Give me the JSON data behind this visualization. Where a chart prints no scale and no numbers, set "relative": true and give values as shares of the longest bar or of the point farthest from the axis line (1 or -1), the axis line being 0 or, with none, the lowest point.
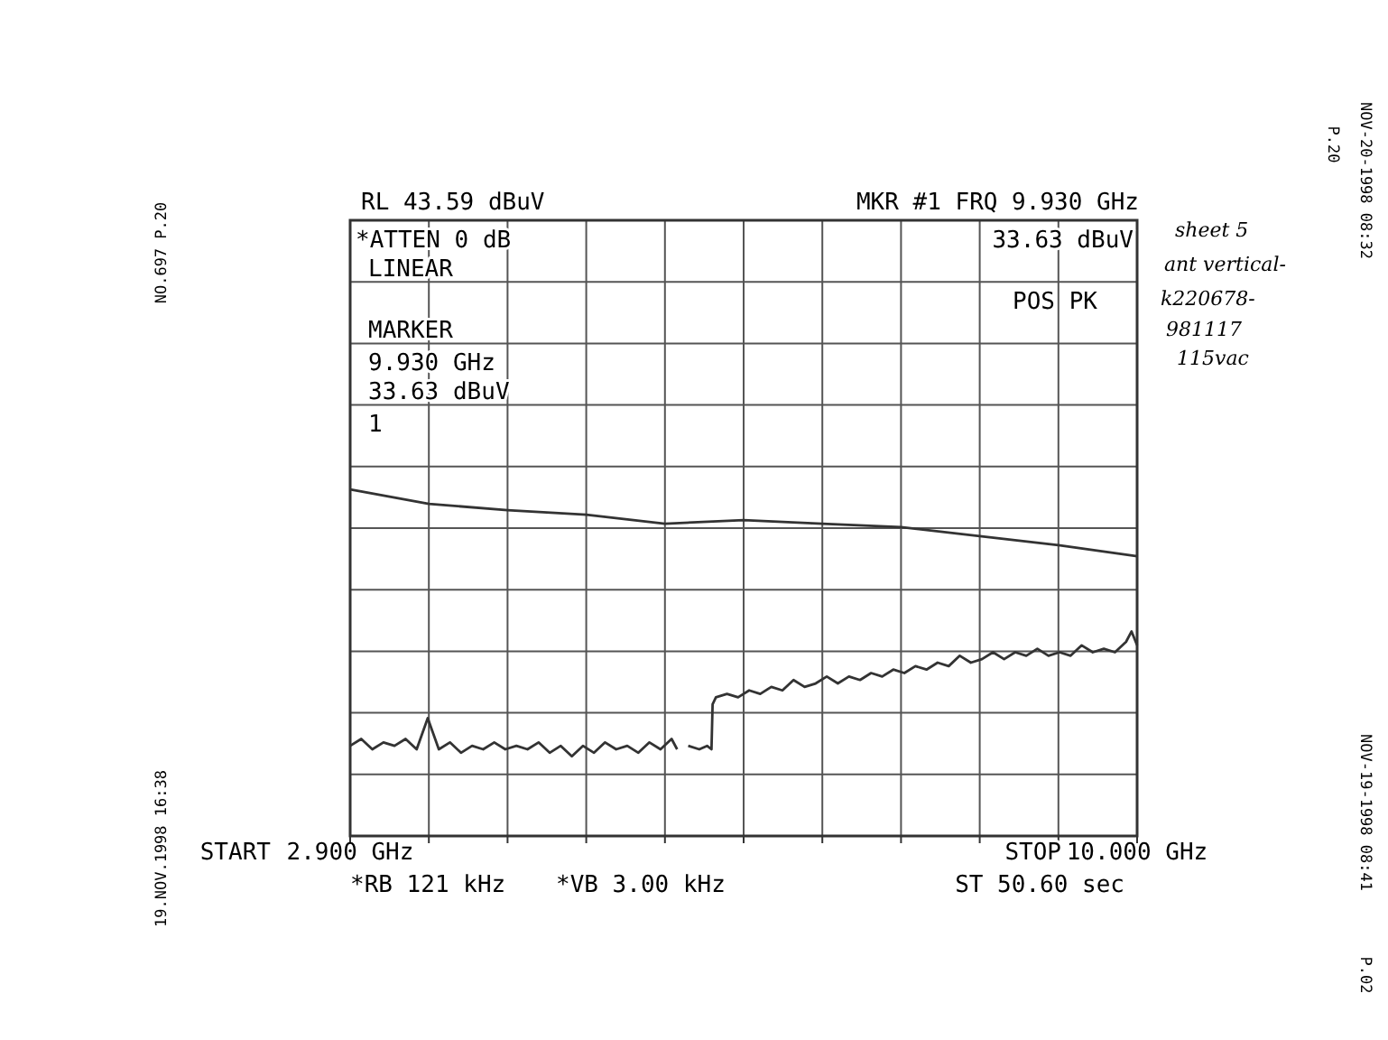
{
  "chart_data": {
    "type": "line",
    "title": "RL 43.59 dBuV",
    "relative": true,
    "xlim": [
      2.9,
      10
    ],
    "xticks": [
      {
        "value": 2.9,
        "label": "2.900 GHz"
      },
      {
        "value": 3.61,
        "label": null
      },
      {
        "value": 4.32,
        "label": null
      },
      {
        "value": 5.03,
        "label": null
      },
      {
        "value": 5.74,
        "label": null
      },
      {
        "value": 6.45,
        "label": null
      },
      {
        "value": 7.16,
        "label": null
      },
      {
        "value": 7.87,
        "label": null
      },
      {
        "value": 8.58,
        "label": null
      },
      {
        "value": 9.29,
        "label": null
      },
      {
        "value": 10,
        "label": "10.000 GHz"
      }
    ],
    "grid": true,
    "tick_labels": "x",
    "series": [
      {
        "color": "#333333",
        "x": [
          2.9,
          3.61,
          4.32,
          5.03,
          5.74,
          6.45,
          7.16,
          7.87,
          8.58,
          9.29,
          10
        ],
        "values": [
          1.0,
          0.958,
          0.94,
          0.927,
          0.901,
          0.911,
          0.901,
          0.891,
          0.865,
          0.839,
          0.807
        ]
      },
      {
        "color": "#333333",
        "x": [
          2.9,
          3.0,
          3.1,
          3.2,
          3.3,
          3.4,
          3.5,
          3.6,
          3.7,
          3.8,
          3.9,
          4.0,
          4.1,
          4.2,
          4.3,
          4.4,
          4.5,
          4.6,
          4.7,
          4.8,
          4.9,
          5.0,
          5.1,
          5.2,
          5.3,
          5.4,
          5.5,
          5.6,
          5.7,
          5.8,
          5.85,
          5.88,
          5.95,
          6.05,
          6.12,
          6.16,
          6.17,
          6.2,
          6.3,
          6.4,
          6.5,
          6.6,
          6.7,
          6.8,
          6.9,
          7.0,
          7.1,
          7.2,
          7.3,
          7.4,
          7.5,
          7.6,
          7.7,
          7.8,
          7.9,
          8.0,
          8.1,
          8.2,
          8.3,
          8.4,
          8.5,
          8.6,
          8.7,
          8.8,
          8.9,
          9.0,
          9.1,
          9.2,
          9.3,
          9.4,
          9.5,
          9.6,
          9.7,
          9.8,
          9.9,
          9.95,
          10.0
        ],
        "values": [
          0.26,
          0.28,
          0.25,
          0.27,
          0.26,
          0.28,
          0.25,
          0.34,
          0.25,
          0.27,
          0.24,
          0.26,
          0.25,
          0.27,
          0.25,
          0.26,
          0.25,
          0.27,
          0.24,
          0.26,
          0.23,
          0.26,
          0.24,
          0.27,
          0.25,
          0.26,
          0.24,
          0.27,
          0.25,
          0.28,
          0.25,
          null,
          0.26,
          0.25,
          0.26,
          0.25,
          0.38,
          0.4,
          0.41,
          0.4,
          0.42,
          0.41,
          0.43,
          0.42,
          0.45,
          0.43,
          0.44,
          0.46,
          0.44,
          0.46,
          0.45,
          0.47,
          0.46,
          0.48,
          0.47,
          0.49,
          0.48,
          0.5,
          0.49,
          0.52,
          0.5,
          0.51,
          0.53,
          0.51,
          0.53,
          0.52,
          0.54,
          0.52,
          0.53,
          0.52,
          0.55,
          0.53,
          0.54,
          0.53,
          0.56,
          0.59,
          0.55
        ]
      }
    ],
    "annotations": [
      "MKR #1 FRQ 9.930 GHz",
      "*ATTEN 0 dB",
      "LINEAR",
      "MARKER",
      "9.930 GHz",
      "33.63 dBuV",
      "1",
      "33.63 dBuV",
      "POS PK",
      "*RB 121 kHz",
      "*VB 3.00 kHz",
      "ST 50.60 sec",
      "sheet 5",
      "ant vertical-",
      "k220678-",
      "981117",
      "115vac",
      "19.NOV.1998 16:38",
      "NO.697 P.20",
      "NOV-20-1998 08:32",
      "P.20",
      "NOV-19-1998 08:41",
      "P.02",
      "START",
      "STOP"
    ]
  }
}
